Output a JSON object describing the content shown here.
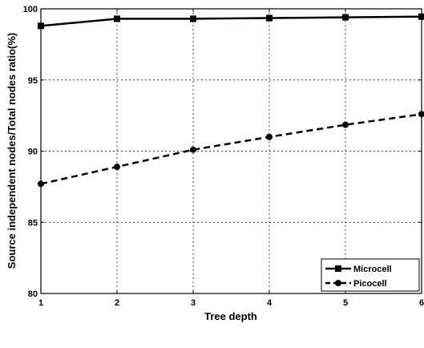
{
  "chart_data": {
    "type": "line",
    "xlabel": "Tree depth",
    "ylabel": "Source independent nodes/Total nodes ratio(%)",
    "x": [
      1,
      2,
      3,
      4,
      5,
      6
    ],
    "xticks": [
      "1",
      "2",
      "3",
      "4",
      "5",
      "6"
    ],
    "yticks": [
      "80",
      "85",
      "90",
      "95",
      "100"
    ],
    "xlim": [
      1,
      6
    ],
    "ylim": [
      80,
      100
    ],
    "grid": true,
    "legend_position": "bottom-right",
    "series": [
      {
        "name": "Microcell",
        "values": [
          98.8,
          99.3,
          99.3,
          99.35,
          99.4,
          99.45
        ],
        "marker": "square",
        "style": "solid",
        "color": "#000000"
      },
      {
        "name": "Picocell",
        "values": [
          87.7,
          88.9,
          90.1,
          91.0,
          91.85,
          92.6
        ],
        "marker": "circle",
        "style": "dashed",
        "color": "#000000"
      }
    ]
  }
}
